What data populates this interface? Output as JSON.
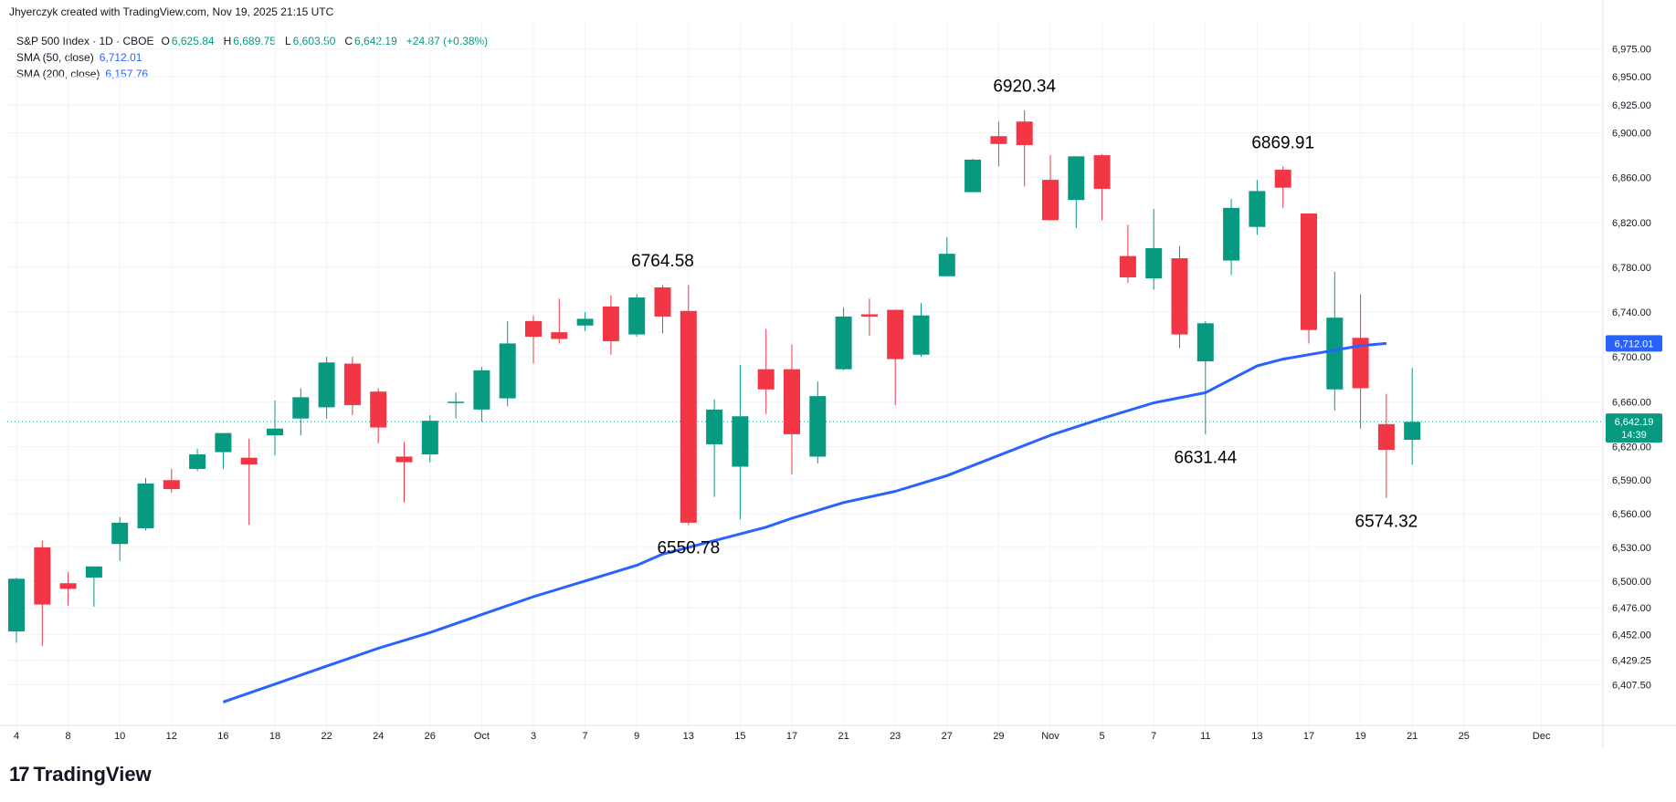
{
  "header": {
    "attribution": "Jhyerczyk created with TradingView.com, Nov 19, 2025 21:15 UTC"
  },
  "legend": {
    "symbol": "S&P 500 Index · 1D · CBOE",
    "o_label": "O",
    "o_value": "6,625.84",
    "h_label": "H",
    "h_value": "6,689.75",
    "l_label": "L",
    "l_value": "6,603.50",
    "c_label": "C",
    "c_value": "6,642.19",
    "change": "+24.87 (+0.38%)",
    "sma50_label": "SMA (50, close)",
    "sma50_value": "6,712.01",
    "sma200_label": "SMA (200, close)",
    "sma200_value": "6,157.76"
  },
  "footer": {
    "brand": "TradingView",
    "brand_mark": "17"
  },
  "colors": {
    "up": "#089981",
    "down": "#f23645",
    "sma50": "#2962ff",
    "price_line": "#089981",
    "grid": "#f0f3fa"
  },
  "chart_data": {
    "type": "candlestick",
    "title": "S&P 500 Index · 1D · CBOE",
    "ylim": [
      6385,
      6990
    ],
    "y_ticks": [
      "6,407.50",
      "6,429.25",
      "6,452.00",
      "6,476.00",
      "6,500.00",
      "6,530.00",
      "6,560.00",
      "6,590.00",
      "6,620.00",
      "6,660.00",
      "6,700.00",
      "6,740.00",
      "6,780.00",
      "6,820.00",
      "6,860.00",
      "6,900.00",
      "6,925.00",
      "6,950.00",
      "6,975.00"
    ],
    "y_tick_values": [
      6407.5,
      6429.25,
      6452,
      6476,
      6500,
      6530,
      6560,
      6590,
      6620,
      6660,
      6700,
      6740,
      6780,
      6820,
      6860,
      6900,
      6925,
      6950,
      6975
    ],
    "x_ticks": [
      {
        "i": 0,
        "label": "4"
      },
      {
        "i": 2,
        "label": "8"
      },
      {
        "i": 4,
        "label": "10"
      },
      {
        "i": 6,
        "label": "12"
      },
      {
        "i": 8,
        "label": "16"
      },
      {
        "i": 10,
        "label": "18"
      },
      {
        "i": 12,
        "label": "22"
      },
      {
        "i": 14,
        "label": "24"
      },
      {
        "i": 16,
        "label": "26"
      },
      {
        "i": 18,
        "label": "Oct"
      },
      {
        "i": 20,
        "label": "3"
      },
      {
        "i": 22,
        "label": "7"
      },
      {
        "i": 24,
        "label": "9"
      },
      {
        "i": 26,
        "label": "13"
      },
      {
        "i": 28,
        "label": "15"
      },
      {
        "i": 30,
        "label": "17"
      },
      {
        "i": 32,
        "label": "21"
      },
      {
        "i": 34,
        "label": "23"
      },
      {
        "i": 36,
        "label": "27"
      },
      {
        "i": 38,
        "label": "29"
      },
      {
        "i": 40,
        "label": "Nov"
      },
      {
        "i": 42,
        "label": "5"
      },
      {
        "i": 44,
        "label": "7"
      },
      {
        "i": 46,
        "label": "11"
      },
      {
        "i": 48,
        "label": "13"
      },
      {
        "i": 50,
        "label": "17"
      },
      {
        "i": 52,
        "label": "19"
      },
      {
        "i": 54,
        "label": "21"
      },
      {
        "i": 56,
        "label": "25"
      },
      {
        "i": 59,
        "label": "Dec"
      }
    ],
    "candles": [
      {
        "o": 6455,
        "h": 6503,
        "l": 6445,
        "c": 6502
      },
      {
        "o": 6530,
        "h": 6536,
        "l": 6442,
        "c": 6479
      },
      {
        "o": 6498,
        "h": 6508,
        "l": 6478,
        "c": 6493
      },
      {
        "o": 6503,
        "h": 6513,
        "l": 6477,
        "c": 6513
      },
      {
        "o": 6533,
        "h": 6557,
        "l": 6518,
        "c": 6552
      },
      {
        "o": 6547,
        "h": 6592,
        "l": 6545,
        "c": 6587
      },
      {
        "o": 6590,
        "h": 6600,
        "l": 6579,
        "c": 6582
      },
      {
        "o": 6600,
        "h": 6618,
        "l": 6598,
        "c": 6613
      },
      {
        "o": 6615,
        "h": 6627,
        "l": 6600,
        "c": 6632
      },
      {
        "o": 6610,
        "h": 6627,
        "l": 6550,
        "c": 6604
      },
      {
        "o": 6630,
        "h": 6661,
        "l": 6612,
        "c": 6636
      },
      {
        "o": 6645,
        "h": 6672,
        "l": 6630,
        "c": 6664
      },
      {
        "o": 6655,
        "h": 6700,
        "l": 6645,
        "c": 6695
      },
      {
        "o": 6694,
        "h": 6700,
        "l": 6648,
        "c": 6657
      },
      {
        "o": 6669,
        "h": 6672,
        "l": 6623,
        "c": 6637
      },
      {
        "o": 6611,
        "h": 6624,
        "l": 6570,
        "c": 6606
      },
      {
        "o": 6613,
        "h": 6648,
        "l": 6606,
        "c": 6643
      },
      {
        "o": 6660,
        "h": 6668,
        "l": 6645,
        "c": 6660
      },
      {
        "o": 6653,
        "h": 6691,
        "l": 6642,
        "c": 6688
      },
      {
        "o": 6663,
        "h": 6732,
        "l": 6656,
        "c": 6712
      },
      {
        "o": 6732,
        "h": 6737,
        "l": 6694,
        "c": 6718
      },
      {
        "o": 6722,
        "h": 6752,
        "l": 6712,
        "c": 6716
      },
      {
        "o": 6728,
        "h": 6740,
        "l": 6723,
        "c": 6734
      },
      {
        "o": 6745,
        "h": 6755,
        "l": 6702,
        "c": 6714
      },
      {
        "o": 6720,
        "h": 6756,
        "l": 6718,
        "c": 6753
      },
      {
        "o": 6762,
        "h": 6764,
        "l": 6721,
        "c": 6736
      },
      {
        "o": 6741,
        "h": 6764,
        "l": 6550,
        "c": 6552
      },
      {
        "o": 6622,
        "h": 6662,
        "l": 6575,
        "c": 6653
      },
      {
        "o": 6602,
        "h": 6693,
        "l": 6555,
        "c": 6647
      },
      {
        "o": 6689,
        "h": 6725,
        "l": 6649,
        "c": 6671
      },
      {
        "o": 6689,
        "h": 6711,
        "l": 6595,
        "c": 6631
      },
      {
        "o": 6611,
        "h": 6678,
        "l": 6605,
        "c": 6665
      },
      {
        "o": 6689,
        "h": 6744,
        "l": 6688,
        "c": 6736
      },
      {
        "o": 6738,
        "h": 6752,
        "l": 6719,
        "c": 6736
      },
      {
        "o": 6742,
        "h": 6742,
        "l": 6657,
        "c": 6698
      },
      {
        "o": 6702,
        "h": 6748,
        "l": 6700,
        "c": 6737
      },
      {
        "o": 6772,
        "h": 6807,
        "l": 6772,
        "c": 6792
      },
      {
        "o": 6847,
        "h": 6877,
        "l": 6847,
        "c": 6876
      },
      {
        "o": 6897,
        "h": 6910,
        "l": 6870,
        "c": 6890
      },
      {
        "o": 6910,
        "h": 6920,
        "l": 6852,
        "c": 6889
      },
      {
        "o": 6858,
        "h": 6880,
        "l": 6822,
        "c": 6822
      },
      {
        "o": 6840,
        "h": 6879,
        "l": 6815,
        "c": 6879
      },
      {
        "o": 6880,
        "h": 6881,
        "l": 6822,
        "c": 6850
      },
      {
        "o": 6790,
        "h": 6818,
        "l": 6766,
        "c": 6771
      },
      {
        "o": 6770,
        "h": 6832,
        "l": 6760,
        "c": 6797
      },
      {
        "o": 6788,
        "h": 6799,
        "l": 6708,
        "c": 6720
      },
      {
        "o": 6696,
        "h": 6732,
        "l": 6631,
        "c": 6730
      },
      {
        "o": 6786,
        "h": 6841,
        "l": 6773,
        "c": 6833
      },
      {
        "o": 6816,
        "h": 6858,
        "l": 6809,
        "c": 6848
      },
      {
        "o": 6867,
        "h": 6870,
        "l": 6833,
        "c": 6851
      },
      {
        "o": 6828,
        "h": 6828,
        "l": 6712,
        "c": 6724
      },
      {
        "o": 6671,
        "h": 6776,
        "l": 6652,
        "c": 6735
      },
      {
        "o": 6717,
        "h": 6756,
        "l": 6636,
        "c": 6672
      },
      {
        "o": 6640,
        "h": 6667,
        "l": 6574,
        "c": 6617
      },
      {
        "o": 6626,
        "h": 6690,
        "l": 6604,
        "c": 6642
      }
    ],
    "sma50": [
      {
        "i": 8,
        "v": 6392
      },
      {
        "i": 10,
        "v": 6408
      },
      {
        "i": 11,
        "v": 6416
      },
      {
        "i": 12,
        "v": 6424
      },
      {
        "i": 14,
        "v": 6440
      },
      {
        "i": 16,
        "v": 6454
      },
      {
        "i": 18,
        "v": 6470
      },
      {
        "i": 20,
        "v": 6486
      },
      {
        "i": 22,
        "v": 6500
      },
      {
        "i": 24,
        "v": 6514
      },
      {
        "i": 25,
        "v": 6524
      },
      {
        "i": 26,
        "v": 6530
      },
      {
        "i": 27,
        "v": 6536
      },
      {
        "i": 28,
        "v": 6542
      },
      {
        "i": 29,
        "v": 6548
      },
      {
        "i": 30,
        "v": 6556
      },
      {
        "i": 32,
        "v": 6570
      },
      {
        "i": 34,
        "v": 6580
      },
      {
        "i": 35,
        "v": 6587
      },
      {
        "i": 36,
        "v": 6594
      },
      {
        "i": 38,
        "v": 6612
      },
      {
        "i": 40,
        "v": 6630
      },
      {
        "i": 42,
        "v": 6645
      },
      {
        "i": 44,
        "v": 6659
      },
      {
        "i": 46,
        "v": 6668
      },
      {
        "i": 47,
        "v": 6680
      },
      {
        "i": 48,
        "v": 6692
      },
      {
        "i": 49,
        "v": 6698
      },
      {
        "i": 50,
        "v": 6702
      },
      {
        "i": 51,
        "v": 6706
      },
      {
        "i": 52,
        "v": 6710
      },
      {
        "i": 53,
        "v": 6712
      }
    ],
    "annotations": [
      {
        "label": "6764.58",
        "i": 25,
        "v": 6764.58,
        "pos": "above"
      },
      {
        "label": "6550.78",
        "i": 26,
        "v": 6550.78,
        "pos": "below"
      },
      {
        "label": "6920.34",
        "i": 39,
        "v": 6920.34,
        "pos": "above"
      },
      {
        "label": "6631.44",
        "i": 46,
        "v": 6631.44,
        "pos": "below"
      },
      {
        "label": "6869.91",
        "i": 49,
        "v": 6869.91,
        "pos": "above"
      },
      {
        "label": "6574.32",
        "i": 53,
        "v": 6574.32,
        "pos": "below"
      }
    ],
    "last_price_label": "6,642.19",
    "last_price_value": 6642.19,
    "countdown": "14:39",
    "sma50_axis_label": "6,712.01",
    "sma50_axis_value": 6712.01
  }
}
